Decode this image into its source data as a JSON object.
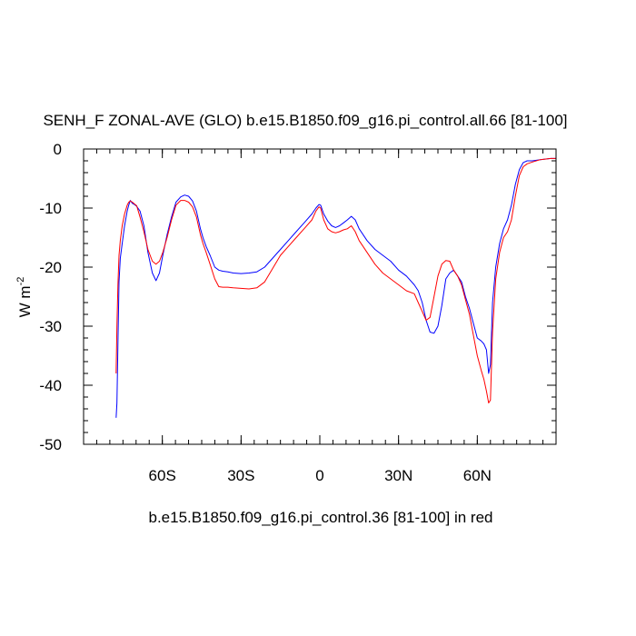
{
  "chart_data": {
    "type": "line",
    "title": "SENH_F ZONAL-AVE (GLO) b.e15.B1850.f09_g16.pi_control.all.66 [81-100]",
    "ylabel_base": "W m",
    "ylabel_exp": "-2",
    "xlabel": "b.e15.B1850.f09_g16.pi_control.36 [81-100] in red",
    "xlim": [
      -90,
      90
    ],
    "ylim": [
      -50,
      0
    ],
    "grid": false,
    "x_ticks": [
      {
        "value": -60,
        "label": "60S"
      },
      {
        "value": -30,
        "label": "30S"
      },
      {
        "value": 0,
        "label": "0"
      },
      {
        "value": 30,
        "label": "30N"
      },
      {
        "value": 60,
        "label": "60N"
      }
    ],
    "y_ticks": [
      {
        "value": 0,
        "label": "0"
      },
      {
        "value": -10,
        "label": "-10"
      },
      {
        "value": -20,
        "label": "-20"
      },
      {
        "value": -30,
        "label": "-30"
      },
      {
        "value": -40,
        "label": "-40"
      },
      {
        "value": -50,
        "label": "-50"
      }
    ],
    "x_minor_step": 5,
    "y_minor_step": 2,
    "series": [
      {
        "color": "#0000ff",
        "x": [
          -77.6,
          -77.3,
          -76.9,
          -76.5,
          -76.0,
          -75.3,
          -74.4,
          -73.4,
          -72.8,
          -72.2,
          -71.4,
          -70.6,
          -69.8,
          -68.5,
          -67.0,
          -65.5,
          -63.8,
          -62.4,
          -61.1,
          -59.8,
          -58.2,
          -56.5,
          -54.8,
          -53.0,
          -51.5,
          -50.0,
          -48.5,
          -47.0,
          -45.5,
          -44.5,
          -43.3,
          -41.8,
          -40.0,
          -38.5,
          -37.0,
          -35.0,
          -33.0,
          -30.0,
          -27.0,
          -24.0,
          -21.0,
          -19.0,
          -17.0,
          -15.0,
          -12.0,
          -9.0,
          -6.0,
          -3.0,
          -1.5,
          -0.3,
          0.3,
          1.5,
          3.0,
          4.5,
          6.0,
          7.5,
          9.0,
          10.5,
          12.0,
          13.5,
          15.0,
          18.0,
          21.0,
          24.0,
          27.0,
          30.0,
          33.0,
          36.0,
          37.5,
          39.0,
          40.5,
          42.0,
          43.5,
          45.0,
          46.5,
          48.0,
          49.5,
          51.0,
          52.5,
          54.0,
          55.5,
          57.0,
          58.5,
          60.0,
          61.5,
          62.5,
          63.5,
          64.3,
          65.0,
          65.8,
          67.0,
          68.5,
          70.0,
          71.5,
          73.0,
          74.5,
          76.0,
          77.5,
          79.0,
          81.0,
          84.0,
          88.0,
          90.0
        ],
        "y": [
          -45.5,
          -43.0,
          -33.0,
          -22.5,
          -18.5,
          -16.0,
          -13.0,
          -10.5,
          -9.5,
          -8.7,
          -9.2,
          -9.4,
          -9.7,
          -10.5,
          -13.0,
          -17.5,
          -21.0,
          -22.3,
          -21.0,
          -18.0,
          -14.5,
          -11.5,
          -9.0,
          -8.1,
          -7.8,
          -8.0,
          -8.8,
          -10.5,
          -13.5,
          -15.0,
          -16.5,
          -18.0,
          -20.0,
          -20.5,
          -20.7,
          -20.8,
          -21.0,
          -21.1,
          -21.0,
          -20.8,
          -20.0,
          -19.0,
          -18.0,
          -17.0,
          -15.5,
          -14.0,
          -12.5,
          -11.0,
          -10.0,
          -9.4,
          -9.5,
          -11.0,
          -12.2,
          -13.0,
          -13.3,
          -13.0,
          -12.5,
          -12.0,
          -11.4,
          -12.0,
          -13.5,
          -15.5,
          -17.0,
          -18.0,
          -19.0,
          -20.5,
          -21.5,
          -23.0,
          -24.0,
          -26.0,
          -29.0,
          -31.0,
          -31.2,
          -30.0,
          -26.5,
          -22.0,
          -21.0,
          -20.5,
          -21.5,
          -22.5,
          -25.0,
          -27.0,
          -29.5,
          -32.0,
          -32.5,
          -33.0,
          -34.0,
          -38.0,
          -36.5,
          -26.0,
          -20.0,
          -16.0,
          -13.5,
          -12.0,
          -9.5,
          -6.0,
          -3.5,
          -2.3,
          -2.0,
          -2.0,
          -1.8,
          -1.6,
          -1.6
        ]
      },
      {
        "color": "#ff0000",
        "x": [
          -77.6,
          -77.3,
          -76.9,
          -76.5,
          -76.0,
          -75.3,
          -74.4,
          -73.4,
          -72.8,
          -72.2,
          -71.4,
          -70.6,
          -69.8,
          -68.5,
          -67.0,
          -65.5,
          -63.8,
          -62.4,
          -61.1,
          -59.8,
          -58.2,
          -56.5,
          -54.8,
          -53.0,
          -51.5,
          -50.0,
          -48.5,
          -47.0,
          -45.5,
          -44.5,
          -43.3,
          -41.8,
          -40.0,
          -38.5,
          -37.0,
          -35.0,
          -33.0,
          -30.0,
          -27.0,
          -24.0,
          -21.0,
          -19.0,
          -17.0,
          -15.0,
          -12.0,
          -9.0,
          -6.0,
          -3.0,
          -1.5,
          -0.3,
          0.3,
          1.5,
          3.0,
          4.5,
          6.0,
          7.5,
          9.0,
          10.5,
          12.0,
          13.5,
          15.0,
          18.0,
          21.0,
          24.0,
          27.0,
          30.0,
          33.0,
          36.0,
          37.5,
          39.0,
          40.5,
          42.0,
          43.5,
          45.0,
          46.5,
          48.0,
          49.5,
          51.0,
          52.5,
          54.0,
          55.5,
          57.0,
          58.5,
          60.0,
          61.5,
          62.5,
          63.5,
          64.3,
          65.0,
          65.8,
          67.0,
          68.5,
          70.0,
          71.5,
          73.0,
          74.5,
          76.0,
          77.5,
          79.0,
          81.0,
          84.0,
          88.0,
          90.0
        ],
        "y": [
          -38.0,
          -30.0,
          -23.0,
          -18.0,
          -15.5,
          -13.0,
          -11.0,
          -9.5,
          -9.0,
          -8.8,
          -9.0,
          -9.3,
          -9.6,
          -11.5,
          -14.0,
          -17.0,
          -19.0,
          -19.5,
          -19.0,
          -17.5,
          -15.0,
          -12.0,
          -9.5,
          -8.7,
          -8.7,
          -9.0,
          -9.8,
          -11.5,
          -14.5,
          -16.0,
          -17.5,
          -19.5,
          -22.0,
          -23.3,
          -23.4,
          -23.4,
          -23.5,
          -23.6,
          -23.7,
          -23.5,
          -22.5,
          -21.0,
          -19.5,
          -18.0,
          -16.5,
          -15.0,
          -13.5,
          -12.0,
          -10.5,
          -9.8,
          -10.0,
          -12.0,
          -13.5,
          -14.0,
          -14.2,
          -14.0,
          -13.7,
          -13.5,
          -13.0,
          -14.0,
          -15.5,
          -17.5,
          -19.5,
          -21.0,
          -22.0,
          -23.0,
          -24.0,
          -24.5,
          -26.0,
          -27.5,
          -29.0,
          -28.5,
          -25.0,
          -21.5,
          -19.5,
          -18.9,
          -19.0,
          -20.5,
          -21.5,
          -23.0,
          -25.5,
          -28.0,
          -31.5,
          -35.0,
          -37.5,
          -39.0,
          -41.0,
          -43.0,
          -42.5,
          -31.0,
          -22.0,
          -17.5,
          -15.0,
          -14.0,
          -12.0,
          -8.0,
          -4.5,
          -3.0,
          -2.5,
          -2.2,
          -1.8,
          -1.6,
          -1.6
        ]
      }
    ]
  }
}
